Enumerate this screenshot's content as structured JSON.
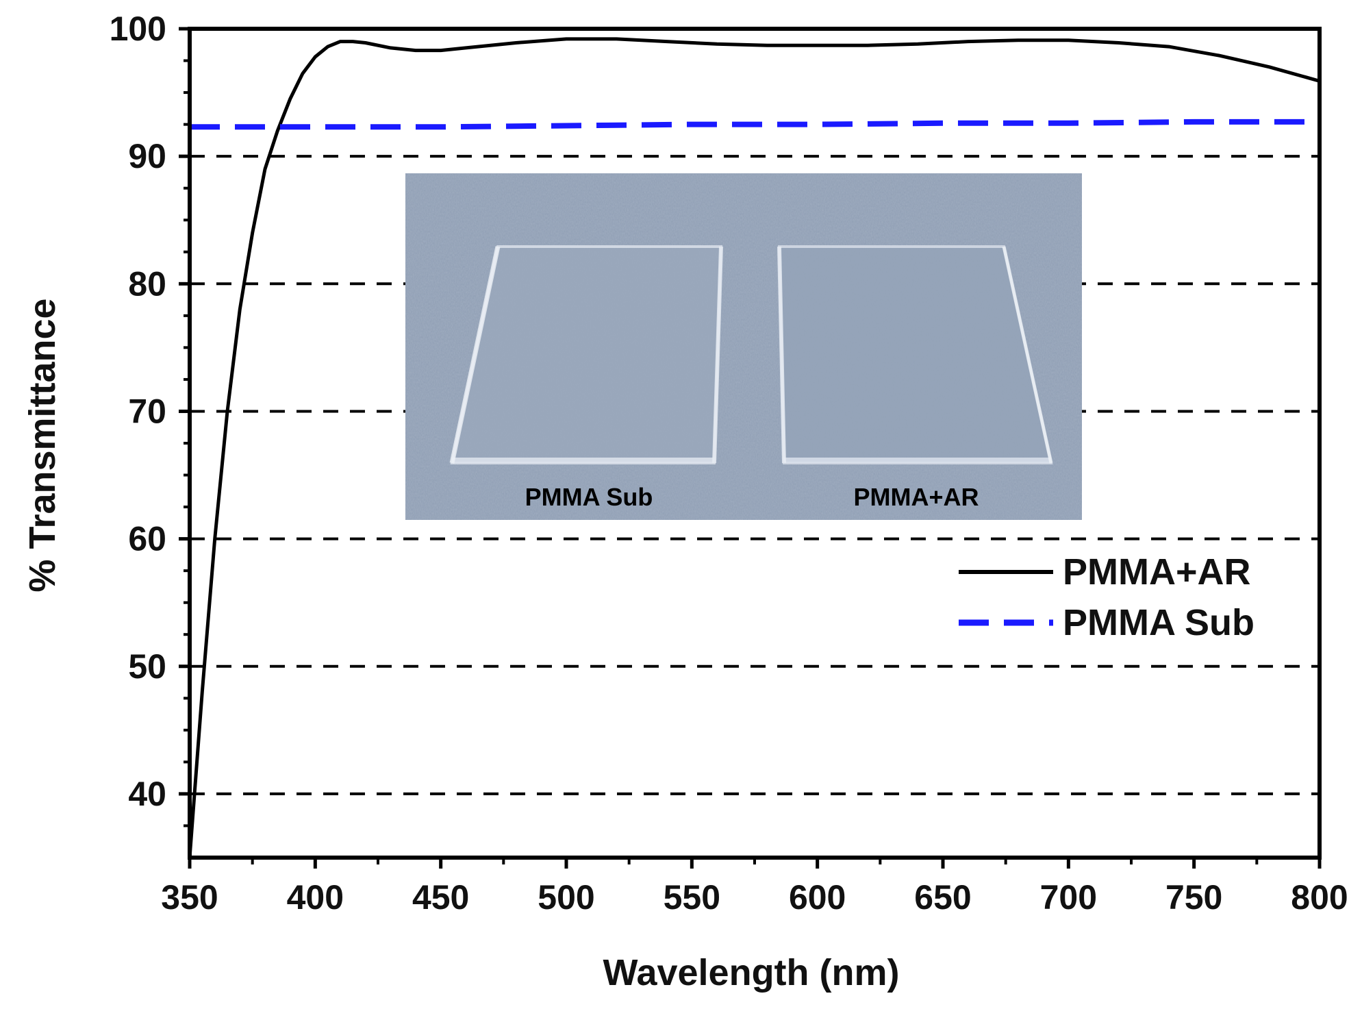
{
  "chart_data": {
    "type": "line",
    "title": "",
    "xlabel": "Wavelength (nm)",
    "ylabel": "% Transmittance",
    "xlim": [
      350,
      800
    ],
    "ylim": [
      35,
      100
    ],
    "x_ticks": [
      350,
      400,
      450,
      500,
      550,
      600,
      650,
      700,
      750,
      800
    ],
    "y_ticks": [
      40,
      50,
      60,
      70,
      80,
      90,
      100
    ],
    "grid": "horizontal dashed lines at 40, 50, 60, 70, 80, 90",
    "legend_position": "center-right",
    "series": [
      {
        "name": "PMMA+AR",
        "color": "#000000",
        "style": "solid",
        "x": [
          350,
          355,
          360,
          365,
          370,
          375,
          380,
          385,
          390,
          395,
          400,
          405,
          410,
          415,
          420,
          430,
          440,
          450,
          460,
          480,
          500,
          520,
          540,
          560,
          580,
          600,
          620,
          640,
          660,
          680,
          700,
          720,
          740,
          760,
          780,
          800
        ],
        "y": [
          35.0,
          48.0,
          60.0,
          70.0,
          78.0,
          84.0,
          89.0,
          92.0,
          94.5,
          96.5,
          97.8,
          98.6,
          99.0,
          99.0,
          98.9,
          98.5,
          98.3,
          98.3,
          98.5,
          98.9,
          99.2,
          99.2,
          99.0,
          98.8,
          98.7,
          98.7,
          98.7,
          98.8,
          99.0,
          99.1,
          99.1,
          98.9,
          98.6,
          97.9,
          97.0,
          95.9
        ]
      },
      {
        "name": "PMMA Sub",
        "color": "#1a1aff",
        "style": "dashed",
        "x": [
          350,
          400,
          450,
          500,
          550,
          600,
          650,
          700,
          750,
          800
        ],
        "y": [
          92.3,
          92.3,
          92.3,
          92.4,
          92.5,
          92.5,
          92.6,
          92.6,
          92.7,
          92.7
        ]
      }
    ],
    "inset_photo": {
      "labels": [
        "PMMA Sub",
        "PMMA+AR"
      ]
    }
  },
  "colors": {
    "axis": "#000000",
    "grid": "#000000",
    "series_ar": "#000000",
    "series_sub": "#1a1aff",
    "inset_background": "#8e9db3"
  }
}
